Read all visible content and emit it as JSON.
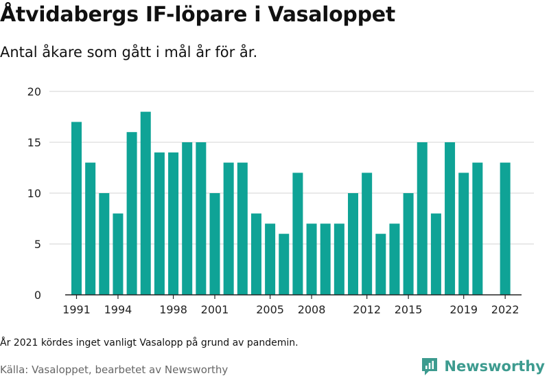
{
  "header": {
    "title": "Åtvidabergs IF-löpare i Vasaloppet",
    "subtitle": "Antal åkare som gått i mål år för år."
  },
  "footer": {
    "note": "År 2021 kördes inget vanligt Vasalopp på grund av pandemin.",
    "source": "Källa: Vasaloppet, bearbetet av Newsworthy",
    "brand": "Newsworthy"
  },
  "colors": {
    "bar": "#0fa396",
    "grid": "#dcdcdc",
    "axis": "#222222",
    "brand": "#3d9b8f"
  },
  "icons": {
    "brand_logo": "newsworthy-logo-icon"
  },
  "chart_data": {
    "type": "bar",
    "categories": [
      1991,
      1992,
      1993,
      1994,
      1995,
      1996,
      1997,
      1998,
      1999,
      2000,
      2001,
      2002,
      2003,
      2004,
      2005,
      2006,
      2007,
      2008,
      2009,
      2010,
      2011,
      2012,
      2013,
      2014,
      2015,
      2016,
      2017,
      2018,
      2019,
      2020,
      2021,
      2022
    ],
    "values": [
      17,
      13,
      10,
      8,
      16,
      18,
      14,
      14,
      15,
      15,
      10,
      13,
      13,
      8,
      7,
      6,
      12,
      7,
      7,
      7,
      10,
      12,
      6,
      7,
      10,
      15,
      8,
      15,
      12,
      13,
      null,
      13
    ],
    "x_tick_labels": [
      "1991",
      "1994",
      "1998",
      "2001",
      "2005",
      "2008",
      "2012",
      "2015",
      "2019",
      "2022"
    ],
    "y_ticks": [
      0,
      5,
      10,
      15,
      20
    ],
    "ylim": [
      0,
      20
    ],
    "grid": true,
    "xlabel": "",
    "ylabel": ""
  }
}
